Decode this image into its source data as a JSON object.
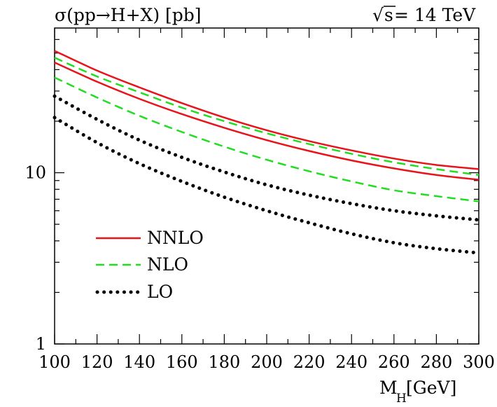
{
  "chart_data": {
    "type": "line",
    "title": "σ(pp→H+X) [pb]",
    "annotation": {
      "sqrt_symbol": "√",
      "s_var": "s",
      "value": " = 14 TeV"
    },
    "xlabel": {
      "main": "M",
      "sub": "H",
      "unit": " [GeV]"
    },
    "ylabel": "",
    "x_scale": "linear",
    "y_scale": "log",
    "xlim": [
      100,
      300
    ],
    "ylim": [
      1,
      70
    ],
    "x_ticks": [
      100,
      120,
      140,
      160,
      180,
      200,
      220,
      240,
      260,
      280,
      300
    ],
    "x_tick_labels": [
      "100",
      "120",
      "140",
      "160",
      "180",
      "200",
      "220",
      "240",
      "260",
      "280",
      "300"
    ],
    "y_major_ticks": [
      1,
      10
    ],
    "y_tick_labels": [
      "1",
      "10"
    ],
    "y_minor_ticks": [
      2,
      3,
      4,
      5,
      6,
      7,
      8,
      9,
      20,
      30,
      40,
      50,
      60
    ],
    "legend": {
      "position": "bottom-left"
    },
    "series": [
      {
        "name": "NNLO",
        "style": "solid",
        "color": "#e8141b",
        "band": true,
        "upper": {
          "x": [
            100,
            120,
            140,
            160,
            180,
            200,
            220,
            240,
            260,
            280,
            300
          ],
          "y": [
            51.5,
            39.5,
            31.5,
            25.5,
            21.0,
            17.7,
            15.3,
            13.5,
            12.1,
            11.1,
            10.5
          ]
        },
        "lower": {
          "x": [
            100,
            120,
            140,
            160,
            180,
            200,
            220,
            240,
            260,
            280,
            300
          ],
          "y": [
            44.0,
            34.0,
            27.0,
            22.0,
            18.3,
            15.5,
            13.4,
            11.8,
            10.6,
            9.7,
            9.1
          ]
        }
      },
      {
        "name": "NLO",
        "style": "dashed",
        "color": "#22dd22",
        "band": true,
        "upper": {
          "x": [
            100,
            120,
            140,
            160,
            180,
            200,
            220,
            240,
            260,
            280,
            300
          ],
          "y": [
            47.0,
            36.5,
            29.5,
            24.0,
            20.0,
            17.0,
            14.7,
            12.9,
            11.5,
            10.5,
            9.7
          ]
        },
        "lower": {
          "x": [
            100,
            120,
            140,
            160,
            180,
            200,
            220,
            240,
            260,
            280,
            300
          ],
          "y": [
            36.0,
            27.5,
            21.5,
            17.3,
            14.2,
            11.9,
            10.2,
            8.9,
            7.9,
            7.3,
            6.8
          ]
        }
      },
      {
        "name": "LO",
        "style": "dotted",
        "color": "#000000",
        "band": true,
        "upper": {
          "x": [
            100,
            120,
            140,
            160,
            180,
            200,
            220,
            240,
            260,
            280,
            300
          ],
          "y": [
            28.0,
            20.5,
            15.5,
            12.3,
            10.1,
            8.5,
            7.4,
            6.6,
            6.0,
            5.6,
            5.3
          ]
        },
        "lower": {
          "x": [
            100,
            120,
            140,
            160,
            180,
            200,
            220,
            240,
            260,
            280,
            300
          ],
          "y": [
            21.0,
            15.0,
            11.3,
            8.9,
            7.2,
            6.0,
            5.1,
            4.4,
            3.9,
            3.6,
            3.4
          ]
        }
      }
    ]
  }
}
